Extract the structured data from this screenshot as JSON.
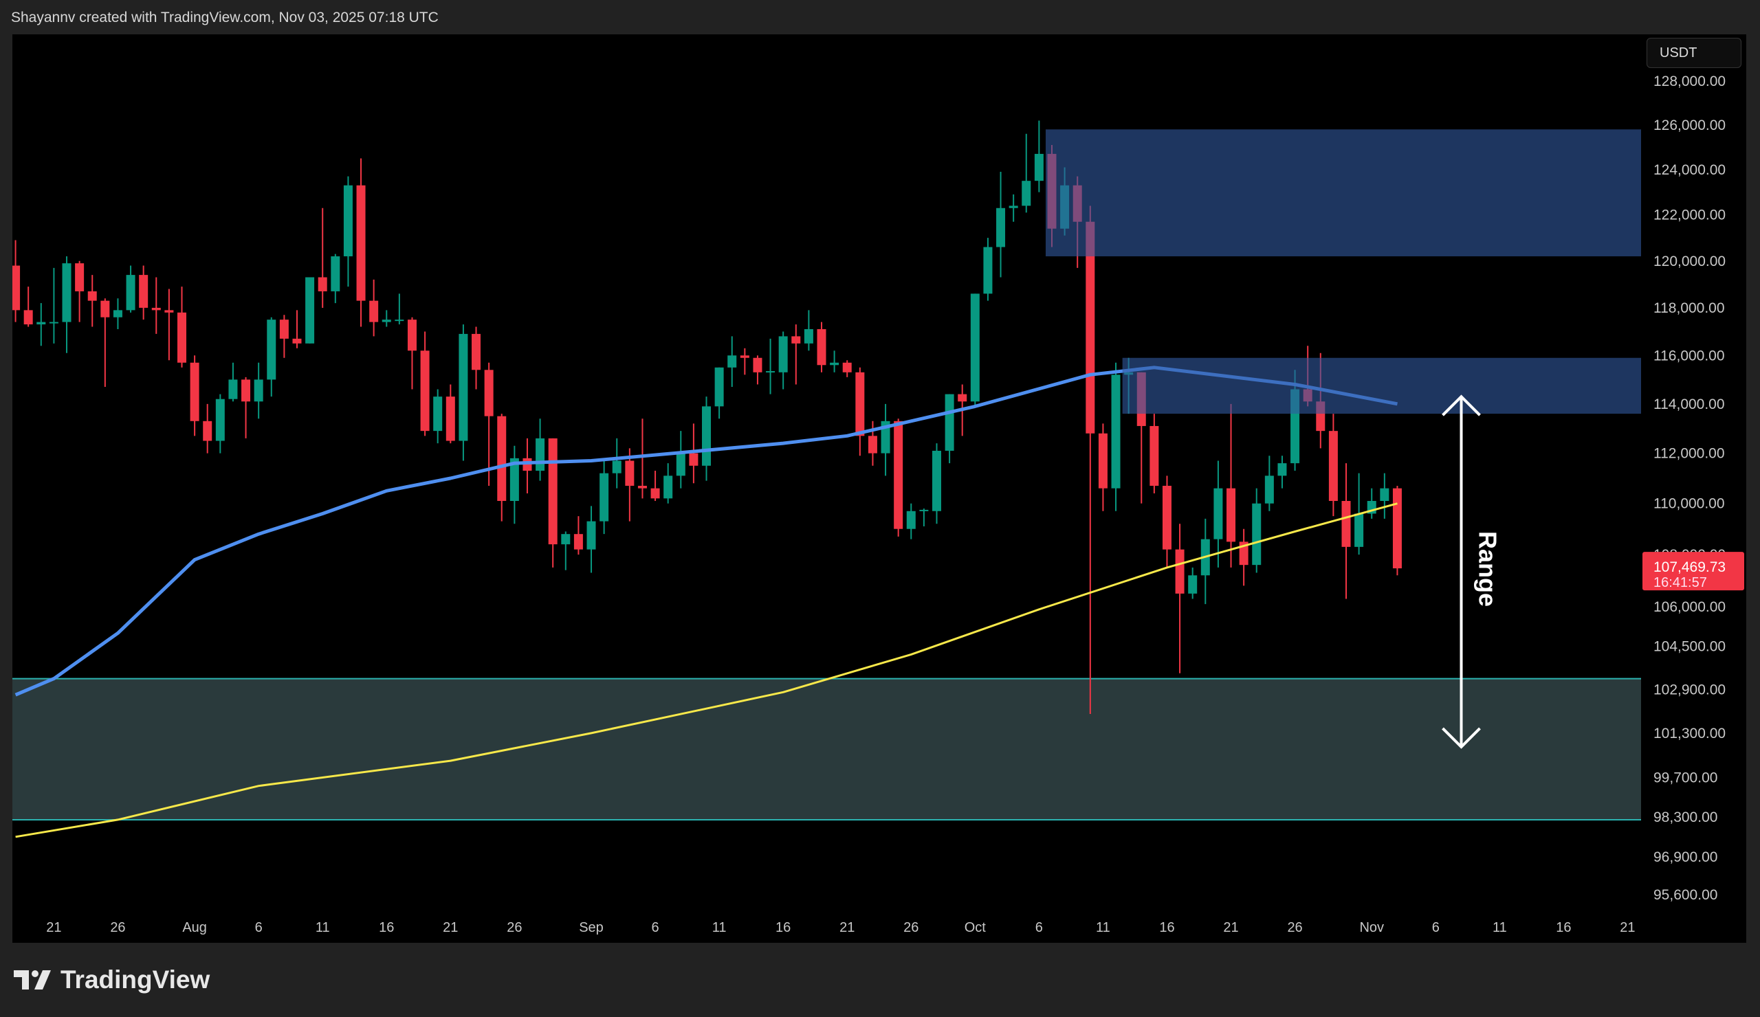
{
  "header": {
    "attribution": "Shayannv created with TradingView.com, Nov 03, 2025 07:18 UTC"
  },
  "currency": "USDT",
  "footer": {
    "logo_text": "TradingView"
  },
  "colors": {
    "up": "#089981",
    "down": "#f23645",
    "ma_fast": "#4f8ff0",
    "ma_slow": "#f7e84a",
    "supply_zone": "rgba(50,90,160,0.6)",
    "demand_zone": "#2a3a3c",
    "demand_border": "#2bb3b0",
    "last_price_bg": "#f23645"
  },
  "chart_data": {
    "type": "candlestick",
    "scale": "log",
    "ylim": [
      95000,
      129000
    ],
    "grid": false,
    "price_axis": [
      {
        "value": 128000,
        "label": "128,000.00"
      },
      {
        "value": 126000,
        "label": "126,000.00"
      },
      {
        "value": 124000,
        "label": "124,000.00"
      },
      {
        "value": 122000,
        "label": "122,000.00"
      },
      {
        "value": 120000,
        "label": "120,000.00"
      },
      {
        "value": 118000,
        "label": "118,000.00"
      },
      {
        "value": 116000,
        "label": "116,000.00"
      },
      {
        "value": 114000,
        "label": "114,000.00"
      },
      {
        "value": 112000,
        "label": "112,000.00"
      },
      {
        "value": 110000,
        "label": "110,000.00"
      },
      {
        "value": 108000,
        "label": "108,000.00"
      },
      {
        "value": 106000,
        "label": "106,000.00"
      },
      {
        "value": 104500,
        "label": "104,500.00"
      },
      {
        "value": 102900,
        "label": "102,900.00"
      },
      {
        "value": 101300,
        "label": "101,300.00"
      },
      {
        "value": 99700,
        "label": "99,700.00"
      },
      {
        "value": 98300,
        "label": "98,300.00"
      },
      {
        "value": 96900,
        "label": "96,900.00"
      },
      {
        "value": 95600,
        "label": "95,600.00"
      }
    ],
    "time_axis": [
      {
        "date": "2025-07-21",
        "label": "21"
      },
      {
        "date": "2025-07-26",
        "label": "26"
      },
      {
        "date": "2025-08-01",
        "label": "Aug"
      },
      {
        "date": "2025-08-06",
        "label": "6"
      },
      {
        "date": "2025-08-11",
        "label": "11"
      },
      {
        "date": "2025-08-16",
        "label": "16"
      },
      {
        "date": "2025-08-21",
        "label": "21"
      },
      {
        "date": "2025-08-26",
        "label": "26"
      },
      {
        "date": "2025-09-01",
        "label": "Sep"
      },
      {
        "date": "2025-09-06",
        "label": "6"
      },
      {
        "date": "2025-09-11",
        "label": "11"
      },
      {
        "date": "2025-09-16",
        "label": "16"
      },
      {
        "date": "2025-09-21",
        "label": "21"
      },
      {
        "date": "2025-09-26",
        "label": "26"
      },
      {
        "date": "2025-10-01",
        "label": "Oct"
      },
      {
        "date": "2025-10-06",
        "label": "6"
      },
      {
        "date": "2025-10-11",
        "label": "11"
      },
      {
        "date": "2025-10-16",
        "label": "16"
      },
      {
        "date": "2025-10-21",
        "label": "21"
      },
      {
        "date": "2025-10-26",
        "label": "26"
      },
      {
        "date": "2025-11-01",
        "label": "Nov"
      },
      {
        "date": "2025-11-06",
        "label": "6"
      },
      {
        "date": "2025-11-11",
        "label": "11"
      },
      {
        "date": "2025-11-16",
        "label": "16"
      },
      {
        "date": "2025-11-21",
        "label": "21"
      }
    ],
    "last_price": {
      "label": "107,469.73",
      "countdown": "16:41:57",
      "value": 107469.73
    },
    "candles_columns": [
      "date",
      "open",
      "high",
      "low",
      "close"
    ],
    "candles": [
      [
        "2025-07-18",
        119800,
        120900,
        117400,
        117900
      ],
      [
        "2025-07-19",
        117900,
        118900,
        117200,
        117300
      ],
      [
        "2025-07-20",
        117300,
        118200,
        116400,
        117400
      ],
      [
        "2025-07-21",
        117400,
        119700,
        116500,
        117400
      ],
      [
        "2025-07-22",
        117400,
        120200,
        116100,
        119900
      ],
      [
        "2025-07-23",
        119900,
        120000,
        117400,
        118700
      ],
      [
        "2025-07-24",
        118700,
        119400,
        117200,
        118300
      ],
      [
        "2025-07-25",
        118300,
        118400,
        114700,
        117600
      ],
      [
        "2025-07-26",
        117600,
        118400,
        117100,
        117900
      ],
      [
        "2025-07-27",
        117900,
        119800,
        117800,
        119400
      ],
      [
        "2025-07-28",
        119400,
        119800,
        117500,
        118000
      ],
      [
        "2025-07-29",
        118000,
        119300,
        116900,
        117900
      ],
      [
        "2025-07-30",
        117900,
        118800,
        115800,
        117800
      ],
      [
        "2025-07-31",
        117800,
        118900,
        115500,
        115700
      ],
      [
        "2025-08-01",
        115700,
        116000,
        112700,
        113300
      ],
      [
        "2025-08-02",
        113300,
        114000,
        112000,
        112500
      ],
      [
        "2025-08-03",
        112500,
        114400,
        112000,
        114200
      ],
      [
        "2025-08-04",
        114200,
        115700,
        114100,
        115000
      ],
      [
        "2025-08-05",
        115000,
        115100,
        112600,
        114100
      ],
      [
        "2025-08-06",
        114100,
        115700,
        113400,
        115000
      ],
      [
        "2025-08-07",
        115000,
        117600,
        114300,
        117500
      ],
      [
        "2025-08-08",
        117500,
        117700,
        115900,
        116700
      ],
      [
        "2025-08-09",
        116700,
        117900,
        116300,
        116500
      ],
      [
        "2025-08-10",
        116500,
        119300,
        116500,
        119300
      ],
      [
        "2025-08-11",
        119300,
        122300,
        118000,
        118700
      ],
      [
        "2025-08-12",
        118700,
        120300,
        118200,
        120200
      ],
      [
        "2025-08-13",
        120200,
        123700,
        118900,
        123300
      ],
      [
        "2025-08-14",
        123300,
        124500,
        117200,
        118300
      ],
      [
        "2025-08-15",
        118300,
        119200,
        116800,
        117400
      ],
      [
        "2025-08-16",
        117400,
        117900,
        117200,
        117500
      ],
      [
        "2025-08-17",
        117500,
        118600,
        117300,
        117500
      ],
      [
        "2025-08-18",
        117500,
        117600,
        114600,
        116200
      ],
      [
        "2025-08-19",
        116200,
        117000,
        112700,
        112900
      ],
      [
        "2025-08-20",
        112900,
        114600,
        112400,
        114300
      ],
      [
        "2025-08-21",
        114300,
        114800,
        112400,
        112500
      ],
      [
        "2025-08-22",
        112500,
        117300,
        111700,
        116900
      ],
      [
        "2025-08-23",
        116900,
        117200,
        114600,
        115400
      ],
      [
        "2025-08-24",
        115400,
        115700,
        110700,
        113500
      ],
      [
        "2025-08-25",
        113500,
        113600,
        109300,
        110100
      ],
      [
        "2025-08-26",
        110100,
        112300,
        109200,
        111800
      ],
      [
        "2025-08-27",
        111800,
        112600,
        110400,
        111300
      ],
      [
        "2025-08-28",
        111300,
        113400,
        110900,
        112600
      ],
      [
        "2025-08-29",
        112600,
        112600,
        107500,
        108400
      ],
      [
        "2025-08-30",
        108400,
        108900,
        107400,
        108800
      ],
      [
        "2025-08-31",
        108800,
        109500,
        108000,
        108200
      ],
      [
        "2025-09-01",
        108200,
        109900,
        107300,
        109300
      ],
      [
        "2025-09-02",
        109300,
        111700,
        108800,
        111200
      ],
      [
        "2025-09-03",
        111200,
        112600,
        110600,
        111700
      ],
      [
        "2025-09-04",
        111700,
        112200,
        109300,
        110700
      ],
      [
        "2025-09-05",
        110700,
        113400,
        110200,
        110600
      ],
      [
        "2025-09-06",
        110600,
        111300,
        110100,
        110200
      ],
      [
        "2025-09-07",
        110200,
        111600,
        110000,
        111100
      ],
      [
        "2025-09-08",
        111100,
        112900,
        110600,
        112000
      ],
      [
        "2025-09-09",
        112000,
        113200,
        110800,
        111500
      ],
      [
        "2025-09-10",
        111500,
        114300,
        110900,
        113900
      ],
      [
        "2025-09-11",
        113900,
        115500,
        113400,
        115500
      ],
      [
        "2025-09-12",
        115500,
        116800,
        114700,
        116000
      ],
      [
        "2025-09-13",
        116000,
        116300,
        115200,
        115900
      ],
      [
        "2025-09-14",
        115900,
        116000,
        114800,
        115300
      ],
      [
        "2025-09-15",
        115300,
        116700,
        114400,
        115350
      ],
      [
        "2025-09-16",
        115300,
        117000,
        114600,
        116800
      ],
      [
        "2025-09-17",
        116800,
        117300,
        114800,
        116500
      ],
      [
        "2025-09-18",
        116500,
        117900,
        116200,
        117100
      ],
      [
        "2025-09-19",
        117100,
        117400,
        115300,
        115600
      ],
      [
        "2025-09-20",
        115600,
        116200,
        115300,
        115700
      ],
      [
        "2025-09-21",
        115700,
        115800,
        115100,
        115300
      ],
      [
        "2025-09-22",
        115300,
        115500,
        111900,
        112700
      ],
      [
        "2025-09-23",
        112700,
        113300,
        111500,
        112000
      ],
      [
        "2025-09-24",
        112000,
        114000,
        111100,
        113300
      ],
      [
        "2025-09-25",
        113300,
        113400,
        108700,
        109000
      ],
      [
        "2025-09-26",
        109000,
        110000,
        108600,
        109700
      ],
      [
        "2025-09-27",
        109700,
        109800,
        109100,
        109750
      ],
      [
        "2025-09-28",
        109700,
        112400,
        109200,
        112100
      ],
      [
        "2025-09-29",
        112100,
        114400,
        111600,
        114400
      ],
      [
        "2025-09-30",
        114400,
        114800,
        112700,
        114100
      ],
      [
        "2025-10-01",
        114100,
        118600,
        113900,
        118600
      ],
      [
        "2025-10-02",
        118600,
        121000,
        118300,
        120600
      ],
      [
        "2025-10-03",
        120600,
        123900,
        119300,
        122300
      ],
      [
        "2025-10-04",
        122300,
        122900,
        121700,
        122400
      ],
      [
        "2025-10-05",
        122400,
        125600,
        122100,
        123500
      ],
      [
        "2025-10-06",
        123500,
        126200,
        123000,
        124700
      ],
      [
        "2025-10-07",
        124700,
        125100,
        120600,
        121400
      ],
      [
        "2025-10-08",
        121400,
        124100,
        121100,
        123300
      ],
      [
        "2025-10-09",
        123300,
        123700,
        119700,
        121700
      ],
      [
        "2025-10-10",
        121700,
        122400,
        102000,
        112800
      ],
      [
        "2025-10-11",
        112800,
        113200,
        109700,
        110600
      ],
      [
        "2025-10-12",
        110600,
        115700,
        109700,
        115200
      ],
      [
        "2025-10-13",
        115200,
        115900,
        113600,
        115300
      ],
      [
        "2025-10-14",
        115300,
        115300,
        110000,
        113100
      ],
      [
        "2025-10-15",
        113100,
        113600,
        110400,
        110700
      ],
      [
        "2025-10-16",
        110700,
        111100,
        107500,
        108200
      ],
      [
        "2025-10-17",
        108200,
        109200,
        103500,
        106500
      ],
      [
        "2025-10-18",
        106500,
        107500,
        106300,
        107200
      ],
      [
        "2025-10-19",
        107200,
        109400,
        106100,
        108600
      ],
      [
        "2025-10-20",
        108600,
        111700,
        107500,
        110600
      ],
      [
        "2025-10-21",
        110600,
        114000,
        107500,
        108500
      ],
      [
        "2025-10-22",
        108500,
        109000,
        106800,
        107600
      ],
      [
        "2025-10-23",
        107600,
        110600,
        107300,
        110000
      ],
      [
        "2025-10-24",
        110000,
        111900,
        109700,
        111100
      ],
      [
        "2025-10-25",
        111100,
        111900,
        110600,
        111600
      ],
      [
        "2025-10-26",
        111600,
        115400,
        111300,
        114600
      ],
      [
        "2025-10-27",
        114600,
        116400,
        113900,
        114100
      ],
      [
        "2025-10-28",
        114100,
        116100,
        112200,
        112900
      ],
      [
        "2025-10-29",
        112900,
        113600,
        109500,
        110100
      ],
      [
        "2025-10-30",
        110100,
        111600,
        106300,
        108300
      ],
      [
        "2025-10-31",
        108300,
        111200,
        108000,
        109600
      ],
      [
        "2025-11-01",
        109600,
        110600,
        109400,
        110100
      ],
      [
        "2025-11-02",
        110100,
        111200,
        109400,
        110600
      ],
      [
        "2025-11-03",
        110600,
        110700,
        107200,
        107469.73
      ]
    ],
    "moving_averages": [
      {
        "color_key": "ma_fast",
        "points": [
          [
            "2025-07-18",
            102700
          ],
          [
            "2025-07-21",
            103300
          ],
          [
            "2025-07-26",
            105000
          ],
          [
            "2025-08-01",
            107800
          ],
          [
            "2025-08-06",
            108800
          ],
          [
            "2025-08-11",
            109600
          ],
          [
            "2025-08-16",
            110500
          ],
          [
            "2025-08-21",
            111000
          ],
          [
            "2025-08-26",
            111600
          ],
          [
            "2025-09-01",
            111700
          ],
          [
            "2025-09-16",
            112400
          ],
          [
            "2025-09-21",
            112700
          ],
          [
            "2025-10-01",
            113900
          ],
          [
            "2025-10-10",
            115200
          ],
          [
            "2025-10-15",
            115500
          ],
          [
            "2025-10-26",
            114800
          ],
          [
            "2025-11-03",
            114000
          ]
        ]
      },
      {
        "color_key": "ma_slow",
        "points": [
          [
            "2025-07-18",
            97600
          ],
          [
            "2025-07-26",
            98200
          ],
          [
            "2025-08-06",
            99400
          ],
          [
            "2025-08-21",
            100300
          ],
          [
            "2025-09-01",
            101300
          ],
          [
            "2025-09-16",
            102800
          ],
          [
            "2025-09-26",
            104200
          ],
          [
            "2025-10-06",
            105900
          ],
          [
            "2025-10-16",
            107500
          ],
          [
            "2025-10-26",
            108900
          ],
          [
            "2025-11-03",
            110000
          ]
        ]
      }
    ],
    "zones": [
      {
        "kind": "supply",
        "from": "2025-10-07",
        "top": 125800,
        "bottom": 120200
      },
      {
        "kind": "supply",
        "from": "2025-10-13",
        "top": 115900,
        "bottom": 113600
      },
      {
        "kind": "demand",
        "from": "2025-07-18",
        "top": 103300,
        "bottom": 98200
      }
    ],
    "annotation": {
      "text": "Range",
      "date": "2025-11-08",
      "top": 114300,
      "bottom": 100800
    }
  }
}
